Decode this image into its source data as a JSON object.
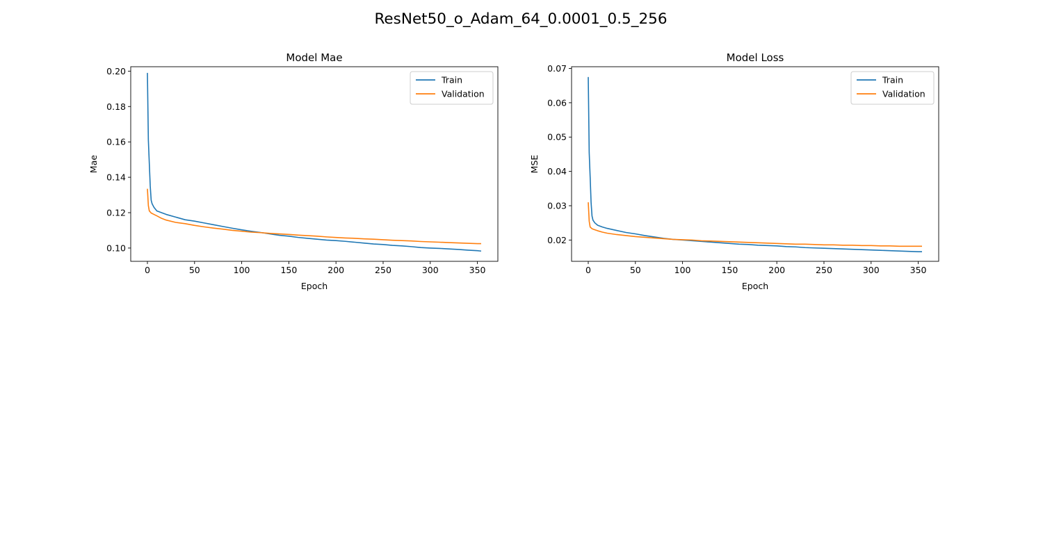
{
  "figure": {
    "suptitle": "ResNet50_o_Adam_64_0.0001_0.5_256"
  },
  "colors": {
    "train": "#1f77b4",
    "validation": "#ff7f0e",
    "axes": "#000000",
    "legend_border": "#cccccc"
  },
  "chart_data": [
    {
      "type": "line",
      "title": "Model Mae",
      "xlabel": "Epoch",
      "ylabel": "Mae",
      "xlim": [
        -17.7,
        371.7
      ],
      "ylim": [
        0.0925,
        0.2025
      ],
      "xticks": [
        0,
        50,
        100,
        150,
        200,
        250,
        300,
        350
      ],
      "xtick_labels": [
        "0",
        "50",
        "100",
        "150",
        "200",
        "250",
        "300",
        "350"
      ],
      "yticks": [
        0.1,
        0.12,
        0.14,
        0.16,
        0.18,
        0.2
      ],
      "ytick_labels": [
        "0.10",
        "0.12",
        "0.14",
        "0.16",
        "0.18",
        "0.20"
      ],
      "grid": false,
      "legend": "top-right",
      "series": [
        {
          "name": "Train",
          "color_key": "train",
          "x": [
            0,
            1,
            2,
            3,
            4,
            5,
            7,
            10,
            15,
            20,
            30,
            40,
            50,
            60,
            70,
            80,
            90,
            100,
            110,
            120,
            130,
            140,
            150,
            160,
            170,
            180,
            190,
            200,
            210,
            220,
            230,
            240,
            250,
            260,
            270,
            280,
            290,
            300,
            310,
            320,
            330,
            340,
            350,
            354
          ],
          "y": [
            0.199,
            0.161,
            0.148,
            0.135,
            0.127,
            0.125,
            0.123,
            0.121,
            0.12,
            0.119,
            0.1175,
            0.116,
            0.1152,
            0.1142,
            0.1132,
            0.1122,
            0.1112,
            0.1103,
            0.1095,
            0.1088,
            0.108,
            0.1072,
            0.1067,
            0.106,
            0.1055,
            0.105,
            0.1045,
            0.1042,
            0.1038,
            0.1033,
            0.1028,
            0.1023,
            0.102,
            0.1015,
            0.1012,
            0.1008,
            0.1003,
            0.1,
            0.0998,
            0.0995,
            0.0992,
            0.0988,
            0.0985,
            0.0983
          ]
        },
        {
          "name": "Validation",
          "color_key": "validation",
          "x": [
            0,
            1,
            2,
            4,
            7,
            10,
            15,
            20,
            30,
            40,
            50,
            60,
            70,
            80,
            90,
            100,
            110,
            120,
            130,
            140,
            150,
            160,
            170,
            180,
            190,
            200,
            210,
            220,
            230,
            240,
            250,
            260,
            270,
            280,
            290,
            300,
            310,
            320,
            330,
            340,
            350,
            354
          ],
          "y": [
            0.1335,
            0.124,
            0.121,
            0.1198,
            0.119,
            0.1182,
            0.1168,
            0.1158,
            0.1145,
            0.1138,
            0.1128,
            0.112,
            0.1113,
            0.1107,
            0.11,
            0.1095,
            0.109,
            0.1087,
            0.1083,
            0.108,
            0.1077,
            0.1073,
            0.107,
            0.1067,
            0.1063,
            0.106,
            0.1057,
            0.1055,
            0.1052,
            0.105,
            0.1047,
            0.1044,
            0.1042,
            0.104,
            0.1037,
            0.1035,
            0.1033,
            0.1031,
            0.1029,
            0.1027,
            0.1025,
            0.1025
          ]
        }
      ]
    },
    {
      "type": "line",
      "title": "Model Loss",
      "xlabel": "Epoch",
      "ylabel": "MSE",
      "xlim": [
        -17.7,
        371.7
      ],
      "ylim": [
        0.0138,
        0.0705
      ],
      "xticks": [
        0,
        50,
        100,
        150,
        200,
        250,
        300,
        350
      ],
      "xtick_labels": [
        "0",
        "50",
        "100",
        "150",
        "200",
        "250",
        "300",
        "350"
      ],
      "yticks": [
        0.02,
        0.03,
        0.04,
        0.05,
        0.06,
        0.07
      ],
      "ytick_labels": [
        "0.02",
        "0.03",
        "0.04",
        "0.05",
        "0.06",
        "0.07"
      ],
      "grid": false,
      "legend": "top-right",
      "series": [
        {
          "name": "Train",
          "color_key": "train",
          "x": [
            0,
            1,
            2,
            3,
            4,
            5,
            7,
            10,
            15,
            20,
            30,
            40,
            50,
            60,
            70,
            80,
            90,
            100,
            110,
            120,
            130,
            140,
            150,
            160,
            170,
            180,
            190,
            200,
            210,
            220,
            230,
            240,
            250,
            260,
            270,
            280,
            290,
            300,
            310,
            320,
            330,
            340,
            350,
            354
          ],
          "y": [
            0.0675,
            0.0455,
            0.0385,
            0.031,
            0.027,
            0.0258,
            0.025,
            0.0243,
            0.0238,
            0.0234,
            0.0228,
            0.0222,
            0.0218,
            0.0213,
            0.0209,
            0.0205,
            0.0202,
            0.02,
            0.0198,
            0.0196,
            0.0194,
            0.0192,
            0.019,
            0.0188,
            0.0187,
            0.0185,
            0.0184,
            0.0183,
            0.0181,
            0.018,
            0.0178,
            0.0177,
            0.0176,
            0.0175,
            0.0174,
            0.0173,
            0.0172,
            0.0171,
            0.017,
            0.0169,
            0.0168,
            0.0167,
            0.0166,
            0.0166
          ]
        },
        {
          "name": "Validation",
          "color_key": "validation",
          "x": [
            0,
            1,
            2,
            4,
            7,
            10,
            15,
            20,
            30,
            40,
            50,
            60,
            70,
            80,
            90,
            100,
            110,
            120,
            130,
            140,
            150,
            160,
            170,
            180,
            190,
            200,
            210,
            220,
            230,
            240,
            250,
            260,
            270,
            280,
            290,
            300,
            310,
            320,
            330,
            340,
            350,
            354
          ],
          "y": [
            0.031,
            0.0255,
            0.0238,
            0.0233,
            0.023,
            0.0227,
            0.0223,
            0.022,
            0.0216,
            0.0213,
            0.021,
            0.0208,
            0.0206,
            0.0204,
            0.0202,
            0.0201,
            0.02,
            0.0198,
            0.0197,
            0.0196,
            0.0195,
            0.0194,
            0.0193,
            0.0192,
            0.0191,
            0.019,
            0.0189,
            0.0188,
            0.0188,
            0.0187,
            0.0186,
            0.0186,
            0.0185,
            0.0185,
            0.0184,
            0.0184,
            0.0183,
            0.0183,
            0.0182,
            0.0182,
            0.0182,
            0.0182
          ]
        }
      ]
    }
  ]
}
